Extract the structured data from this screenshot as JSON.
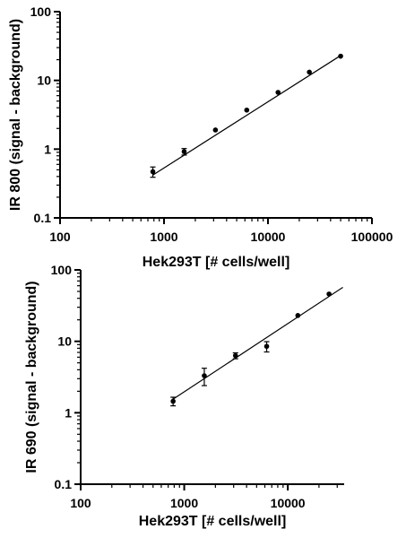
{
  "chart_data": [
    {
      "type": "scatter",
      "xlabel": "Hek293T [# cells/well]",
      "ylabel": "IR 800 (signal - background)",
      "xscale": "log",
      "yscale": "log",
      "xlim": [
        100,
        100000
      ],
      "ylim": [
        0.1,
        100
      ],
      "xticks": [
        "100",
        "1000",
        "10000",
        "100000"
      ],
      "yticks": [
        "0.1",
        "1",
        "10",
        "100"
      ],
      "grid": false,
      "series": [
        {
          "points": [
            {
              "x": 781,
              "y": 0.47,
              "err": 0.08
            },
            {
              "x": 1562,
              "y": 0.92,
              "err": 0.1
            },
            {
              "x": 3125,
              "y": 1.9,
              "err": 0
            },
            {
              "x": 6250,
              "y": 3.7,
              "err": 0
            },
            {
              "x": 12500,
              "y": 6.7,
              "err": 0
            },
            {
              "x": 25000,
              "y": 13.2,
              "err": 0
            },
            {
              "x": 50000,
              "y": 22.5,
              "err": 0
            }
          ],
          "fit": {
            "x": [
              781,
              50000
            ],
            "y": [
              0.42,
              23.0
            ]
          }
        }
      ]
    },
    {
      "type": "scatter",
      "xlabel": "Hek293T [# cells/well]",
      "ylabel": "IR 690 (signal - background)",
      "xscale": "log",
      "yscale": "log",
      "xlim": [
        100,
        35000
      ],
      "ylim": [
        0.1,
        100
      ],
      "xticks": [
        "100",
        "1000",
        "10000"
      ],
      "yticks": [
        "0.1",
        "1",
        "10",
        "100"
      ],
      "grid": false,
      "series": [
        {
          "points": [
            {
              "x": 781,
              "y": 1.45,
              "err": 0.2
            },
            {
              "x": 1562,
              "y": 3.3,
              "err": 0.9
            },
            {
              "x": 3125,
              "y": 6.3,
              "err": 0.6
            },
            {
              "x": 6250,
              "y": 8.5,
              "err": 1.4
            },
            {
              "x": 12500,
              "y": 23.0,
              "err": 0
            },
            {
              "x": 25000,
              "y": 46.0,
              "err": 0
            }
          ],
          "fit": {
            "x": [
              781,
              34000
            ],
            "y": [
              1.55,
              57.0
            ]
          }
        }
      ]
    }
  ]
}
